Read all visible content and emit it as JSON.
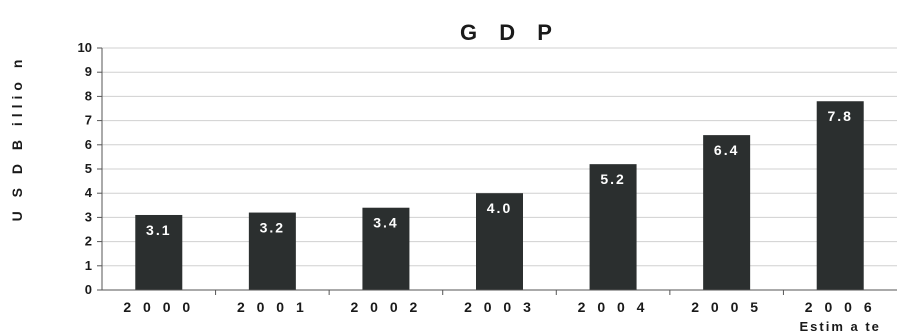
{
  "chart_data": {
    "type": "bar",
    "title": "G D P",
    "ylabel": "U S D   B illio n",
    "xlabel": "",
    "categories": [
      "2 0 0 0",
      "2 0 0 1",
      "2 0 0 2",
      "2 0 0 3",
      "2 0 0 4",
      "2 0 0 5",
      "2 0 0 6"
    ],
    "category_sublabels": [
      "",
      "",
      "",
      "",
      "",
      "",
      "Estim a te"
    ],
    "values": [
      3.1,
      3.2,
      3.4,
      4.0,
      5.2,
      6.4,
      7.8
    ],
    "data_labels": [
      "3.1",
      "3.2",
      "3.4",
      "4.0",
      "5.2",
      "6.4",
      "7.8"
    ],
    "ylim": [
      0,
      10
    ],
    "yticks": [
      0,
      1,
      2,
      3,
      4,
      5,
      6,
      7,
      8,
      9,
      10
    ],
    "grid": true,
    "legend": "none",
    "colors": {
      "bar": "#2b2f2f",
      "grid": "#d0d0d0",
      "text": "#1a1a1a",
      "data_label": "#ffffff"
    }
  }
}
